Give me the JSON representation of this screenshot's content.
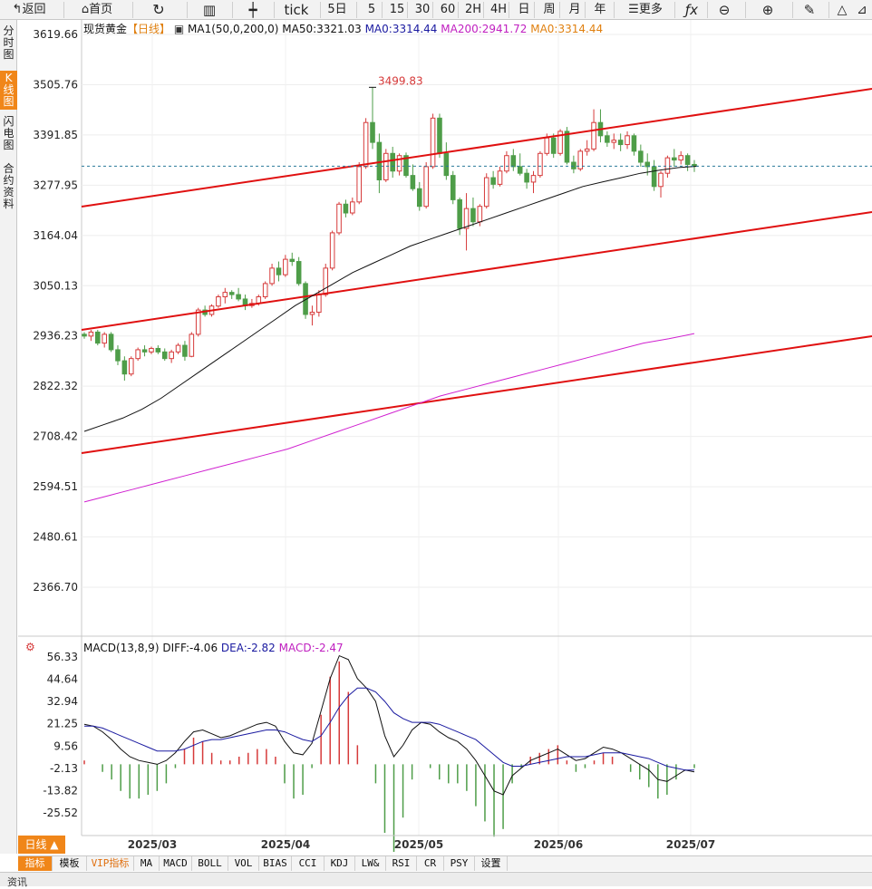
{
  "toolbar": {
    "back": "返回",
    "home": "首页",
    "tick": "tick",
    "periods": [
      "5日",
      "5",
      "15",
      "30",
      "60",
      "2H",
      "4H",
      "日",
      "周",
      "月",
      "年"
    ],
    "more": "更多"
  },
  "sidebar": [
    "分时图",
    "K线图",
    "闪电图",
    "合约资料"
  ],
  "legend": {
    "name": "现货黄金",
    "period": "【日线】",
    "ma_label": "MA1(50,0,200,0)",
    "ma50": "MA50:3321.03",
    "ma0a": "MA0:3314.44",
    "ma200": "MA200:2941.72",
    "ma0b": "MA0:3314.44",
    "macd_label": "MACD(13,8,9)",
    "diff": "DIFF:-4.06",
    "dea": "DEA:-2.82",
    "macd": "MACD:-2.47"
  },
  "price_ticks": [
    "3619.66",
    "3505.76",
    "3391.85",
    "3277.95",
    "3164.04",
    "3050.13",
    "2936.23",
    "2822.32",
    "2708.42",
    "2594.51",
    "2480.61",
    "2366.70"
  ],
  "macd_ticks": [
    "56.33",
    "44.64",
    "32.94",
    "21.25",
    "9.56",
    "-2.13",
    "-13.82",
    "-25.52"
  ],
  "date_labels": [
    "2025/03",
    "2025/04",
    "2025/05",
    "2025/06",
    "2025/07"
  ],
  "high_label": "3499.83",
  "bottom": {
    "dline": "日线 ▲",
    "indicators": [
      "指标",
      "模板",
      "VIP指标",
      "MA",
      "MACD",
      "BOLL",
      "VOL",
      "BIAS",
      "CCI",
      "KDJ",
      "LW&",
      "RSI",
      "CR",
      "PSY",
      "设置"
    ]
  },
  "footer": "资讯",
  "colors": {
    "up": "#d63a3a",
    "down": "#4e9d48",
    "trend": "#e01010",
    "ma50": "#111111",
    "ma200": "#d020d0",
    "dea": "#1a1aa0"
  },
  "chart_data": {
    "type": "candlestick",
    "title": "现货黄金",
    "candles": [
      [
        2940,
        2945,
        2930,
        2936
      ],
      [
        2936,
        2950,
        2925,
        2945
      ],
      [
        2945,
        2950,
        2915,
        2920
      ],
      [
        2920,
        2945,
        2910,
        2940
      ],
      [
        2940,
        2945,
        2900,
        2905
      ],
      [
        2905,
        2915,
        2870,
        2880
      ],
      [
        2880,
        2890,
        2835,
        2850
      ],
      [
        2850,
        2890,
        2845,
        2885
      ],
      [
        2885,
        2910,
        2880,
        2905
      ],
      [
        2905,
        2915,
        2890,
        2900
      ],
      [
        2900,
        2912,
        2895,
        2908
      ],
      [
        2908,
        2915,
        2895,
        2900
      ],
      [
        2900,
        2908,
        2880,
        2885
      ],
      [
        2885,
        2905,
        2875,
        2900
      ],
      [
        2900,
        2920,
        2895,
        2915
      ],
      [
        2915,
        2925,
        2880,
        2890
      ],
      [
        2890,
        2945,
        2888,
        2940
      ],
      [
        2940,
        3000,
        2935,
        2995
      ],
      [
        2995,
        3005,
        2980,
        2985
      ],
      [
        2985,
        3008,
        2980,
        3004
      ],
      [
        3004,
        3030,
        3000,
        3025
      ],
      [
        3025,
        3045,
        3010,
        3035
      ],
      [
        3035,
        3040,
        3020,
        3030
      ],
      [
        3030,
        3045,
        3015,
        3020
      ],
      [
        3020,
        3030,
        2995,
        3005
      ],
      [
        3005,
        3020,
        3000,
        3010
      ],
      [
        3010,
        3030,
        3005,
        3025
      ],
      [
        3025,
        3060,
        3020,
        3055
      ],
      [
        3055,
        3100,
        3050,
        3090
      ],
      [
        3090,
        3105,
        3060,
        3075
      ],
      [
        3075,
        3120,
        3070,
        3110
      ],
      [
        3110,
        3125,
        3095,
        3105
      ],
      [
        3105,
        3115,
        3050,
        3055
      ],
      [
        3055,
        3060,
        2975,
        2985
      ],
      [
        2985,
        3005,
        2960,
        2990
      ],
      [
        2990,
        3040,
        2980,
        3030
      ],
      [
        3030,
        3100,
        3025,
        3090
      ],
      [
        3090,
        3175,
        3085,
        3170
      ],
      [
        3170,
        3240,
        3165,
        3235
      ],
      [
        3235,
        3245,
        3205,
        3215
      ],
      [
        3215,
        3250,
        3210,
        3240
      ],
      [
        3240,
        3330,
        3235,
        3320
      ],
      [
        3320,
        3430,
        3315,
        3420
      ],
      [
        3420,
        3500,
        3360,
        3375
      ],
      [
        3375,
        3395,
        3260,
        3290
      ],
      [
        3290,
        3360,
        3285,
        3350
      ],
      [
        3350,
        3365,
        3295,
        3310
      ],
      [
        3310,
        3350,
        3300,
        3345
      ],
      [
        3345,
        3352,
        3295,
        3300
      ],
      [
        3300,
        3325,
        3265,
        3270
      ],
      [
        3270,
        3285,
        3220,
        3230
      ],
      [
        3230,
        3330,
        3225,
        3320
      ],
      [
        3320,
        3440,
        3315,
        3430
      ],
      [
        3430,
        3440,
        3340,
        3350
      ],
      [
        3350,
        3375,
        3290,
        3300
      ],
      [
        3300,
        3310,
        3235,
        3245
      ],
      [
        3245,
        3250,
        3165,
        3180
      ],
      [
        3180,
        3260,
        3130,
        3225
      ],
      [
        3225,
        3250,
        3185,
        3195
      ],
      [
        3195,
        3235,
        3185,
        3230
      ],
      [
        3230,
        3305,
        3225,
        3295
      ],
      [
        3295,
        3310,
        3270,
        3280
      ],
      [
        3280,
        3320,
        3275,
        3310
      ],
      [
        3310,
        3355,
        3305,
        3345
      ],
      [
        3345,
        3360,
        3310,
        3320
      ],
      [
        3320,
        3350,
        3300,
        3305
      ],
      [
        3305,
        3315,
        3270,
        3285
      ],
      [
        3285,
        3310,
        3260,
        3300
      ],
      [
        3300,
        3355,
        3295,
        3350
      ],
      [
        3350,
        3395,
        3345,
        3385
      ],
      [
        3385,
        3395,
        3340,
        3350
      ],
      [
        3350,
        3405,
        3345,
        3400
      ],
      [
        3400,
        3410,
        3325,
        3330
      ],
      [
        3330,
        3345,
        3305,
        3315
      ],
      [
        3315,
        3360,
        3310,
        3355
      ],
      [
        3355,
        3380,
        3345,
        3360
      ],
      [
        3360,
        3450,
        3355,
        3420
      ],
      [
        3420,
        3450,
        3375,
        3390
      ],
      [
        3390,
        3400,
        3365,
        3375
      ],
      [
        3375,
        3395,
        3360,
        3380
      ],
      [
        3380,
        3395,
        3355,
        3370
      ],
      [
        3370,
        3400,
        3360,
        3390
      ],
      [
        3390,
        3395,
        3345,
        3355
      ],
      [
        3355,
        3370,
        3320,
        3330
      ],
      [
        3330,
        3350,
        3300,
        3320
      ],
      [
        3320,
        3335,
        3265,
        3275
      ],
      [
        3275,
        3310,
        3250,
        3305
      ],
      [
        3305,
        3345,
        3295,
        3340
      ],
      [
        3340,
        3360,
        3320,
        3335
      ],
      [
        3335,
        3355,
        3325,
        3345
      ],
      [
        3345,
        3350,
        3310,
        3325
      ],
      [
        3325,
        3335,
        3308,
        3321
      ]
    ],
    "ma50": [
      2720,
      2735,
      2750,
      2770,
      2795,
      2825,
      2855,
      2885,
      2915,
      2945,
      2975,
      3005,
      3030,
      3055,
      3080,
      3100,
      3120,
      3140,
      3155,
      3170,
      3185,
      3200,
      3215,
      3230,
      3245,
      3260,
      3275,
      3285,
      3295,
      3305,
      3312,
      3318,
      3321
    ],
    "ma200": [
      2560,
      2575,
      2590,
      2605,
      2620,
      2635,
      2650,
      2665,
      2680,
      2700,
      2720,
      2740,
      2760,
      2780,
      2800,
      2815,
      2830,
      2845,
      2860,
      2875,
      2890,
      2905,
      2920,
      2930,
      2941.72
    ],
    "high": 3499.83,
    "ylim": [
      2366.7,
      3619.66
    ],
    "macd_dif": [
      21,
      20,
      17,
      13,
      8,
      4,
      2,
      1,
      0,
      2,
      6,
      12,
      17,
      18,
      16,
      14,
      15,
      17,
      19,
      21,
      22,
      20,
      12,
      6,
      5,
      11,
      28,
      45,
      57,
      55,
      45,
      40,
      33,
      15,
      4,
      10,
      18,
      22,
      21,
      17,
      14,
      12,
      8,
      2,
      -6,
      -14,
      -16,
      -6,
      -2,
      2,
      4,
      6,
      8,
      5,
      2,
      3,
      6,
      9,
      8,
      6,
      3,
      0,
      -3,
      -8,
      -9,
      -6,
      -3,
      -4
    ],
    "macd_dea": [
      20,
      20,
      19,
      17,
      15,
      13,
      11,
      9,
      7,
      7,
      7,
      8,
      10,
      12,
      13,
      13,
      14,
      15,
      16,
      17,
      18,
      18,
      17,
      15,
      13,
      12,
      15,
      22,
      30,
      36,
      40,
      40,
      38,
      33,
      27,
      24,
      22,
      22,
      22,
      21,
      19,
      17,
      15,
      13,
      9,
      5,
      1,
      -1,
      -1,
      0,
      1,
      2,
      3,
      4,
      4,
      4,
      5,
      6,
      6,
      6,
      5,
      4,
      3,
      1,
      -1,
      -2,
      -3,
      -3
    ],
    "macd_ylim": [
      -25.52,
      56.33
    ]
  }
}
